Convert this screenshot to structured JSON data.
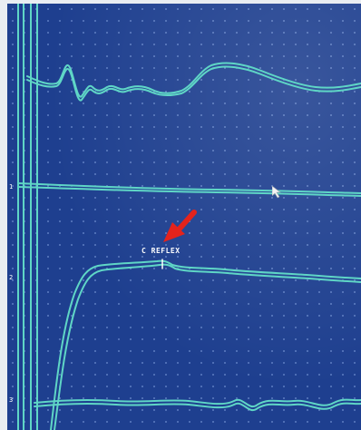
{
  "annotation": {
    "label": "C REFLEX"
  },
  "channel_markers": [
    "1",
    "2",
    "3"
  ],
  "colors": {
    "screen_background": "#1e3f8f",
    "grid_dots": "#6f8fd0",
    "trace": "#5fd6c6",
    "annotation_arrow": "#e4231c",
    "cursor": "#f4f4f4"
  },
  "icons": {
    "arrow": "red-arrow-icon",
    "cursor": "mouse-cursor-icon"
  }
}
